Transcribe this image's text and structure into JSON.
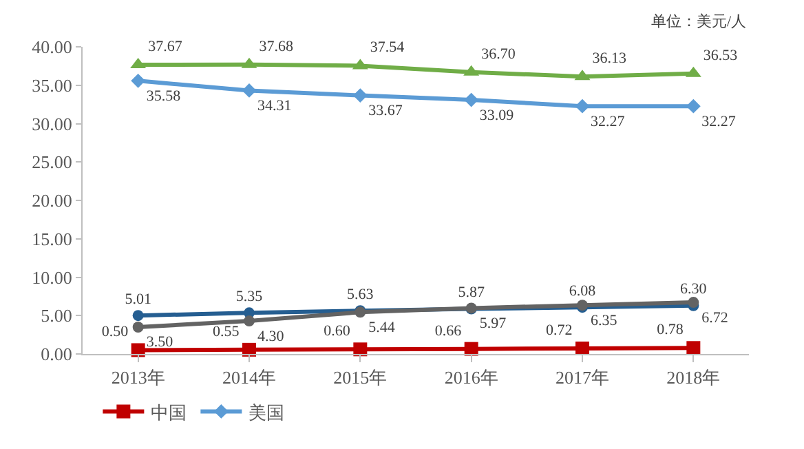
{
  "chart_data": {
    "type": "line",
    "annotations": [
      "单位：美元/人"
    ],
    "categories": [
      "2013年",
      "2014年",
      "2015年",
      "2016年",
      "2017年",
      "2018年"
    ],
    "series": [
      {
        "name": "中国",
        "color": "#c00000",
        "marker": "square",
        "values": [
          0.5,
          0.55,
          0.6,
          0.66,
          0.72,
          0.78
        ],
        "value_labels": [
          "0.50",
          "0.55",
          "0.60",
          "0.66",
          "0.72",
          "0.78"
        ]
      },
      {
        "name": "美国",
        "color": "#5b9bd5",
        "marker": "diamond",
        "values": [
          35.58,
          34.31,
          33.67,
          33.09,
          32.27,
          32.27
        ],
        "value_labels": [
          "35.58",
          "34.31",
          "33.67",
          "33.09",
          "32.27",
          "32.27"
        ]
      },
      {
        "color": "#70ad47",
        "marker": "triangle",
        "values": [
          37.67,
          37.68,
          37.54,
          36.7,
          36.13,
          36.53
        ],
        "value_labels": [
          "37.67",
          "37.68",
          "37.54",
          "36.70",
          "36.13",
          "36.53"
        ]
      },
      {
        "color": "#255e91",
        "marker": "circle",
        "values": [
          5.01,
          5.35,
          5.63,
          5.87,
          6.08,
          6.3
        ],
        "value_labels": [
          "5.01",
          "5.35",
          "5.63",
          "5.87",
          "6.08",
          "6.30"
        ]
      },
      {
        "color": "#636363",
        "marker": "circle",
        "values": [
          3.5,
          4.3,
          5.44,
          5.97,
          6.35,
          6.72
        ],
        "value_labels": [
          "3.50",
          "4.30",
          "5.44",
          "5.97",
          "6.35",
          "6.72"
        ]
      }
    ],
    "ylim": [
      0,
      40
    ],
    "yticks": [
      {
        "value": 0,
        "label": "0.00"
      },
      {
        "value": 5,
        "label": "5.00"
      },
      {
        "value": 10,
        "label": "10.00"
      },
      {
        "value": 15,
        "label": "15.00"
      },
      {
        "value": 20,
        "label": "20.00"
      },
      {
        "value": 25,
        "label": "25.00"
      },
      {
        "value": 30,
        "label": "30.00"
      },
      {
        "value": 35,
        "label": "35.00"
      },
      {
        "value": 40,
        "label": "40.00"
      }
    ],
    "grid": false,
    "legend": "bottom"
  }
}
